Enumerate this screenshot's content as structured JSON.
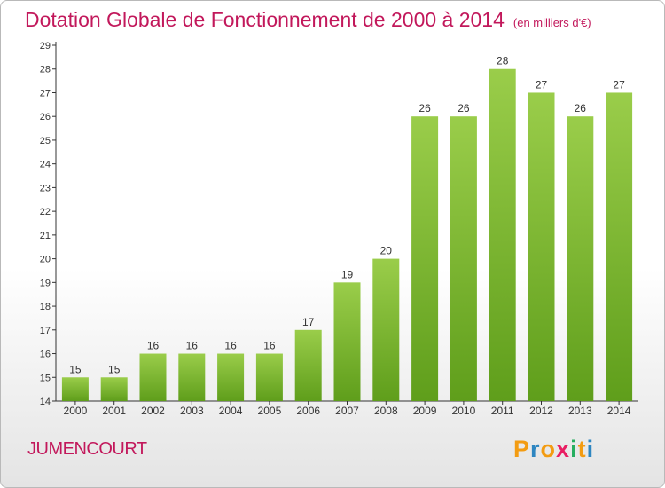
{
  "title": "Dotation Globale de Fonctionnement de 2000 à 2014",
  "subtitle": "(en milliers d'€)",
  "commune": "JUMENCOURT",
  "logo": {
    "letters": [
      "P",
      "r",
      "o",
      "x",
      "i",
      "t",
      "i"
    ],
    "colors": [
      "#f39c12",
      "#2e86c1",
      "#f39c12",
      "#e91e63",
      "#27ae60",
      "#f39c12",
      "#2e86c1"
    ]
  },
  "colors": {
    "bar_top": "#9acd4a",
    "bar_bottom": "#5f9e1b",
    "title": "#c2185b"
  },
  "chart_data": {
    "type": "bar",
    "categories": [
      "2000",
      "2001",
      "2002",
      "2003",
      "2004",
      "2005",
      "2006",
      "2007",
      "2008",
      "2009",
      "2010",
      "2011",
      "2012",
      "2013",
      "2014"
    ],
    "values": [
      15,
      15,
      16,
      16,
      16,
      16,
      17,
      19,
      20,
      26,
      26,
      28,
      27,
      26,
      27
    ],
    "ylim": [
      14,
      29
    ],
    "yticks": [
      14,
      15,
      16,
      17,
      18,
      19,
      20,
      21,
      22,
      23,
      24,
      25,
      26,
      27,
      28,
      29
    ],
    "grid": false,
    "legend": "none"
  }
}
